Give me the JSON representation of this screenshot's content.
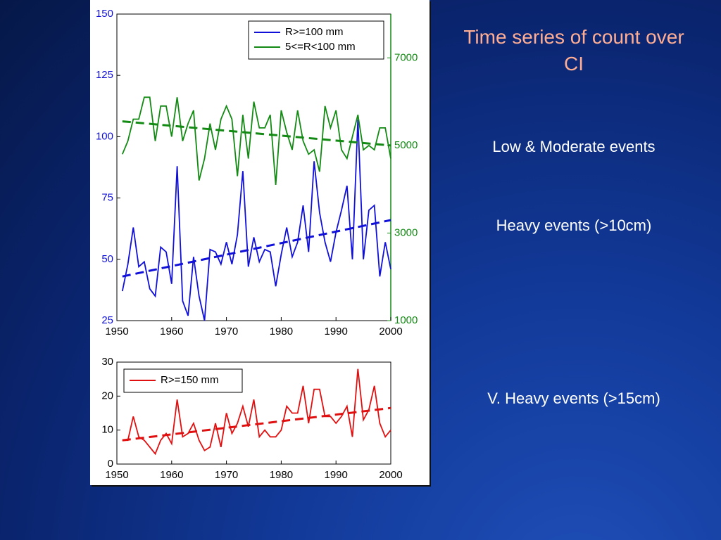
{
  "title": "Time series of count over CI",
  "labels": [
    "Low & Moderate events",
    "Heavy events (>10cm)",
    "V. Heavy events (>15cm)"
  ],
  "chart_data": [
    {
      "type": "line",
      "x": [
        1951,
        1952,
        1953,
        1954,
        1955,
        1956,
        1957,
        1958,
        1959,
        1960,
        1961,
        1962,
        1963,
        1964,
        1965,
        1966,
        1967,
        1968,
        1969,
        1970,
        1971,
        1972,
        1973,
        1974,
        1975,
        1976,
        1977,
        1978,
        1979,
        1980,
        1981,
        1982,
        1983,
        1984,
        1985,
        1986,
        1987,
        1988,
        1989,
        1990,
        1991,
        1992,
        1993,
        1994,
        1995,
        1996,
        1997,
        1998,
        1999,
        2000
      ],
      "xlim": [
        1950,
        2000
      ],
      "xticks": [
        1950,
        1960,
        1970,
        1980,
        1990,
        2000
      ],
      "ylim": [
        25,
        150
      ],
      "yticks": [
        25,
        50,
        75,
        100,
        125,
        150
      ],
      "y2lim": [
        1000,
        8000
      ],
      "y2ticks": [
        1000,
        3000,
        5000,
        7000
      ],
      "legend": "upper right",
      "series": [
        {
          "name": "R>=100 mm",
          "color": "#1010d8",
          "values": [
            37,
            48,
            63,
            47,
            49,
            38,
            35,
            55,
            53,
            40,
            88,
            33,
            27,
            51,
            35,
            25,
            54,
            53,
            48,
            57,
            48,
            60,
            86,
            47,
            59,
            49,
            54,
            53,
            39,
            52,
            63,
            51,
            57,
            72,
            53,
            90,
            69,
            57,
            49,
            61,
            70,
            80,
            50,
            107,
            50,
            70,
            72,
            43,
            57,
            46
          ],
          "trend": {
            "x": [
              1951,
              2000
            ],
            "values": [
              43,
              66
            ]
          }
        },
        {
          "name": "5<=R<100 mm",
          "color": "#138a13",
          "axis": "y2",
          "values": [
            4800,
            5100,
            5600,
            5600,
            6100,
            6100,
            5100,
            5900,
            5900,
            5200,
            6100,
            5100,
            5500,
            5800,
            4200,
            4700,
            5500,
            4900,
            5600,
            5900,
            5600,
            4300,
            5700,
            4700,
            6000,
            5400,
            5400,
            5700,
            4100,
            5800,
            5300,
            4900,
            5800,
            5100,
            4800,
            4900,
            4400,
            5900,
            5400,
            5800,
            4900,
            4700,
            5200,
            5700,
            4900,
            5000,
            4900,
            5400,
            5400,
            4700
          ],
          "trend": {
            "x": [
              1951,
              2000
            ],
            "values": [
              5550,
              5000
            ]
          }
        }
      ]
    },
    {
      "type": "line",
      "x": [
        1951,
        1952,
        1953,
        1954,
        1955,
        1956,
        1957,
        1958,
        1959,
        1960,
        1961,
        1962,
        1963,
        1964,
        1965,
        1966,
        1967,
        1968,
        1969,
        1970,
        1971,
        1972,
        1973,
        1974,
        1975,
        1976,
        1977,
        1978,
        1979,
        1980,
        1981,
        1982,
        1983,
        1984,
        1985,
        1986,
        1987,
        1988,
        1989,
        1990,
        1991,
        1992,
        1993,
        1994,
        1995,
        1996,
        1997,
        1998,
        1999,
        2000
      ],
      "xlim": [
        1950,
        2000
      ],
      "xticks": [
        1950,
        1960,
        1970,
        1980,
        1990,
        2000
      ],
      "ylim": [
        0,
        30
      ],
      "yticks": [
        0,
        10,
        20,
        30
      ],
      "legend": "upper left",
      "series": [
        {
          "name": "R>=150 mm",
          "color": "#e01010",
          "values": [
            7,
            7,
            14,
            8,
            7,
            5,
            3,
            7,
            9,
            6,
            19,
            8,
            9,
            12,
            7,
            4,
            5,
            12,
            5,
            15,
            9,
            12,
            17,
            11,
            19,
            8,
            10,
            8,
            8,
            10,
            17,
            15,
            15,
            23,
            12,
            22,
            22,
            14,
            14,
            12,
            14,
            17,
            8,
            28,
            13,
            16,
            23,
            12,
            8,
            10
          ],
          "trend": {
            "x": [
              1951,
              2000
            ],
            "values": [
              7,
              16.5
            ]
          }
        }
      ]
    }
  ]
}
